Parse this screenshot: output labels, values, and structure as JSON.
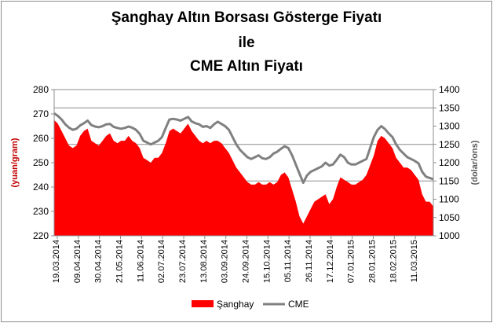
{
  "chart_data": {
    "type": "area",
    "title_lines": [
      "Şanghay Altın Borsası Gösterge Fiyatı",
      "ile",
      "CME Altın Fiyatı"
    ],
    "ylabel_left": "(yuan/gram)",
    "ylabel_right": "(dolar/ons)",
    "ylim_left": [
      220,
      280
    ],
    "ylim_right": [
      1000,
      1400
    ],
    "yticks_left": [
      "220",
      "230",
      "240",
      "250",
      "260",
      "270",
      "280"
    ],
    "yticks_right": [
      "1000",
      "1050",
      "1100",
      "1150",
      "1200",
      "1250",
      "1300",
      "1350",
      "1400"
    ],
    "x_tick_labels": [
      "19.03.2014",
      "09.04.2014",
      "30.04.2014",
      "21.05.2014",
      "11.06.2014",
      "02.07.2014",
      "23.07.2014",
      "13.08.2014",
      "03.09.2014",
      "24.09.2014",
      "15.10.2014",
      "05.11.2014",
      "26.11.2014",
      "17.12.2014",
      "07.01.2015",
      "28.01.2015",
      "18.02.2015",
      "11.03.2015"
    ],
    "grid": "horizontal lines at right-axis 1150, 1250, 1350",
    "legend_position": "bottom",
    "series": [
      {
        "name": "Şanghay",
        "axis": "left",
        "color": "#ff0000",
        "values": [
          267.5,
          266,
          263,
          260,
          257,
          256,
          257,
          261,
          263,
          264,
          259,
          258,
          257,
          259,
          261,
          262,
          259,
          258,
          259,
          259,
          261,
          259,
          258,
          256,
          252,
          251,
          250,
          252,
          252,
          254,
          258,
          263,
          264,
          263,
          262,
          264,
          266,
          263,
          261,
          259,
          258,
          259,
          258,
          259,
          259,
          258,
          256,
          254,
          251,
          248,
          246,
          244,
          242,
          241,
          241,
          242,
          241,
          241,
          242,
          241,
          242,
          245,
          246,
          244,
          239,
          234,
          228,
          225,
          228,
          231,
          234,
          235,
          236,
          237,
          233,
          235,
          240,
          244,
          243,
          242,
          241,
          241,
          242,
          243,
          245,
          249,
          253,
          259,
          261,
          260,
          258,
          256,
          252,
          250,
          248,
          248,
          247,
          245,
          243,
          237,
          234,
          234,
          232
        ]
      },
      {
        "name": "CME",
        "axis": "right",
        "color": "#808080",
        "values": [
          1335,
          1328,
          1318,
          1305,
          1296,
          1290,
          1293,
          1302,
          1308,
          1315,
          1303,
          1299,
          1297,
          1300,
          1305,
          1306,
          1298,
          1295,
          1293,
          1295,
          1299,
          1296,
          1290,
          1279,
          1260,
          1255,
          1250,
          1255,
          1260,
          1270,
          1295,
          1318,
          1320,
          1318,
          1315,
          1320,
          1325,
          1313,
          1308,
          1305,
          1298,
          1300,
          1295,
          1305,
          1312,
          1306,
          1300,
          1290,
          1270,
          1250,
          1235,
          1225,
          1215,
          1210,
          1215,
          1220,
          1212,
          1210,
          1215,
          1225,
          1230,
          1238,
          1245,
          1240,
          1220,
          1195,
          1170,
          1145,
          1165,
          1175,
          1180,
          1185,
          1190,
          1200,
          1192,
          1195,
          1208,
          1222,
          1215,
          1200,
          1195,
          1195,
          1200,
          1205,
          1210,
          1240,
          1270,
          1290,
          1300,
          1292,
          1280,
          1270,
          1250,
          1235,
          1225,
          1215,
          1210,
          1205,
          1198,
          1175,
          1162,
          1158,
          1155
        ]
      }
    ]
  }
}
